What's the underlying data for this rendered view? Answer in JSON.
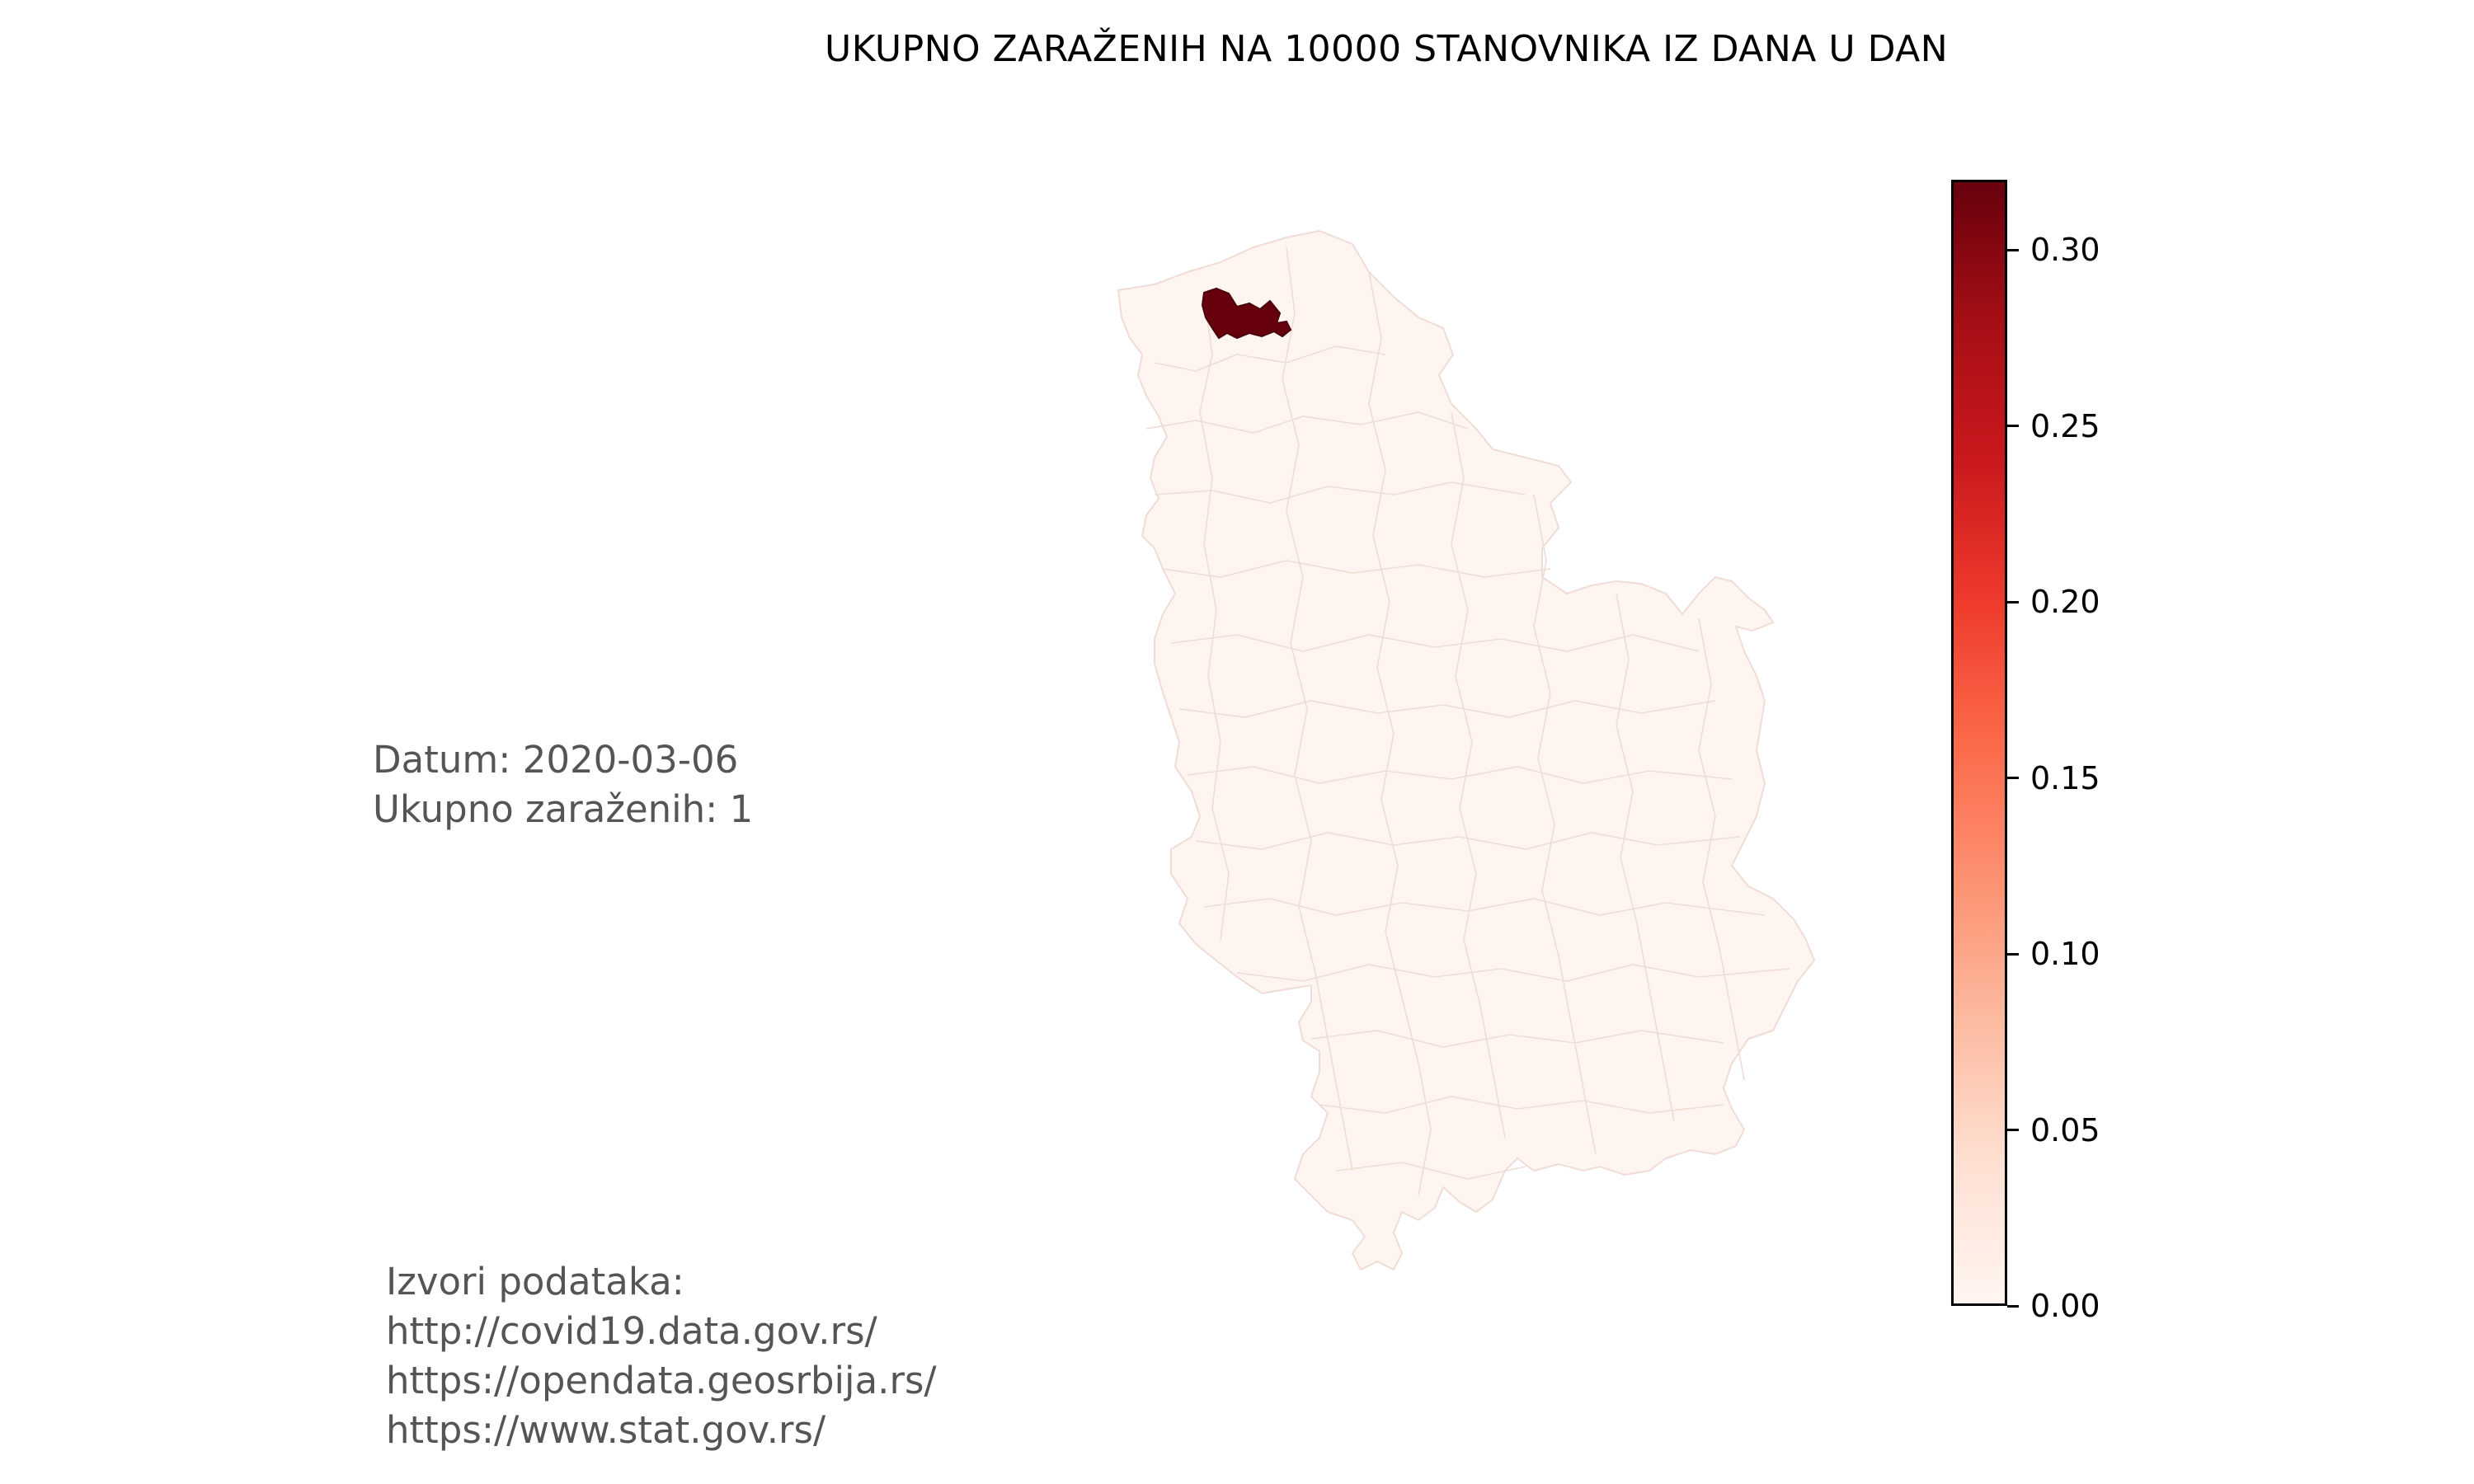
{
  "title": "UKUPNO ZARAŽENIH NA 10000 STANOVNIKA IZ DANA U DAN",
  "info": {
    "date_line": "Datum: 2020-03-06",
    "total_line": "Ukupno zaraženih: 1"
  },
  "sources": {
    "heading": "Izvori podataka:",
    "links": [
      "http://covid19.data.gov.rs/",
      "https://opendata.geosrbija.rs/",
      "https://www.stat.gov.rs/"
    ]
  },
  "map": {
    "type": "choropleth",
    "colormap": "Reds",
    "base_color": "#fff5f0",
    "max_color": "#67000d",
    "border_color": "#f0dcd6",
    "highlighted_region_value": 0.32
  },
  "colorbar": {
    "min": 0.0,
    "max": 0.32,
    "ticks": [
      "0.00",
      "0.05",
      "0.10",
      "0.15",
      "0.20",
      "0.25",
      "0.30"
    ],
    "tick_values": [
      0.0,
      0.05,
      0.1,
      0.15,
      0.2,
      0.25,
      0.3
    ],
    "gradient": [
      "#fff5f0",
      "#fee0d2",
      "#fcbba1",
      "#fc9272",
      "#fb6a4a",
      "#ef3b2c",
      "#cb181d",
      "#a50f15",
      "#67000d"
    ]
  }
}
